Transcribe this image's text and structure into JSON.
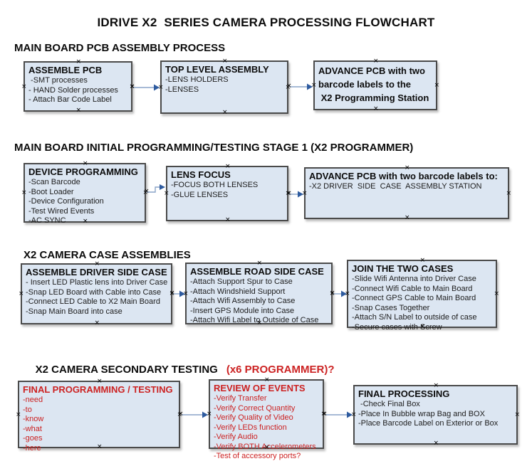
{
  "title": "IDRIVE X2  SERIES CAMERA PROCESSING FLOWCHART",
  "glyphs": {
    "handle": "×"
  },
  "colors": {
    "box_fill": "#dce6f2",
    "box_border": "#4a4a4a",
    "arrow_line": "#8aa4c8",
    "arrow_head": "#2e5b9f",
    "red_text": "#cc2222"
  },
  "sections": [
    {
      "heading": "MAIN BOARD PCB ASSEMBLY PROCESS",
      "boxes": [
        {
          "title": "ASSEMBLE PCB",
          "items": [
            " -SMT processes",
            "- HAND Solder processes",
            "- Attach Bar Code Label"
          ]
        },
        {
          "title": "TOP LEVEL ASSEMBLY",
          "items": [
            "-LENS HOLDERS",
            "-LENSES"
          ]
        },
        {
          "title": "",
          "items": [
            "ADVANCE PCB with two",
            "barcode labels to the",
            " X2 Programming Station"
          ]
        }
      ]
    },
    {
      "heading": "MAIN BOARD INITIAL PROGRAMMING/TESTING STAGE 1 (X2 PROGRAMMER)",
      "boxes": [
        {
          "title": "DEVICE PROGRAMMING",
          "items": [
            "-Scan Barcode",
            "-Boot Loader",
            "-Device Configuration",
            "-Test Wired Events",
            "-AC SYNC"
          ]
        },
        {
          "title": "LENS FOCUS",
          "items": [
            "-FOCUS BOTH LENSES",
            "-GLUE LENSES"
          ]
        },
        {
          "title": "ADVANCE PCB with two barcode labels to:",
          "items": [
            "-X2 DRIVER  SIDE  CASE  ASSEMBLY STATION"
          ]
        }
      ]
    },
    {
      "heading": "X2 CAMERA CASE ASSEMBLIES",
      "boxes": [
        {
          "title": "ASSEMBLE DRIVER SIDE CASE",
          "items": [
            "- Insert LED Plastic lens into Driver Case",
            "-Snap LED Board with Cable into Case",
            "-Connect LED Cable to X2 Main Board",
            "-Snap Main Board into case"
          ]
        },
        {
          "title": "ASSEMBLE ROAD SIDE CASE",
          "items": [
            "-Attach Support Spur to Case",
            "-Attach Windshield Support",
            "-Attach Wifi Assembly to Case",
            "-Insert GPS Module into Case",
            "-Attach Wifi Label to Outside of Case"
          ]
        },
        {
          "title": "JOIN THE TWO CASES",
          "items": [
            "-Slide Wifi Antenna into Driver Case",
            "-Connect Wifi Cable to Main Board",
            "-Connect GPS Cable to Main Board",
            "-Snap Cases Together",
            "-Attach S/N Label to outside of case",
            "-Secure cases with Screw"
          ]
        }
      ]
    },
    {
      "heading": "X2 CAMERA SECONDARY TESTING",
      "heading_red": "(x6 PROGRAMMER)?",
      "boxes": [
        {
          "title": "FINAL PROGRAMMING / TESTING",
          "items": [
            "-need",
            "-to",
            "-know",
            "-what",
            "-goes",
            "-here"
          ]
        },
        {
          "title": "REVIEW OF EVENTS",
          "items": [
            "-Verify Transfer",
            "-Verify Correct Quantity",
            "-Verify Quality of Video",
            "-Verify LEDs function",
            "-Verify Audio",
            "-Verify BOTH Accelerometers",
            "-Test of accessory ports?"
          ]
        },
        {
          "title": "FINAL PROCESSING",
          "items": [
            " -Check Final Box",
            "-Place In Bubble wrap Bag and BOX",
            "-Place Barcode Label on Exterior or Box"
          ]
        }
      ]
    }
  ]
}
